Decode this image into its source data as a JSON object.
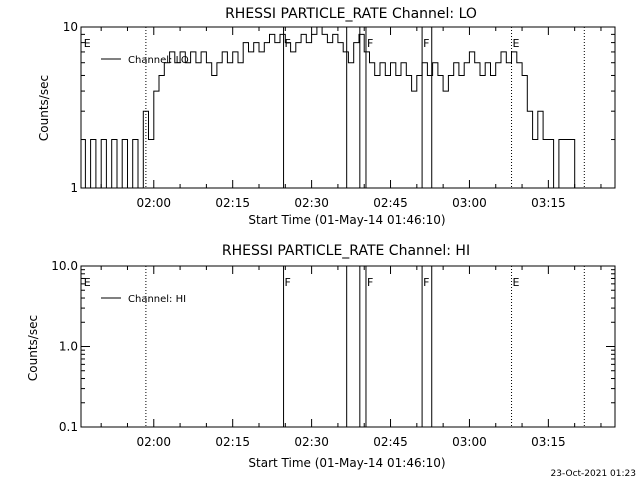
{
  "footer_timestamp": "23-Oct-2021 01:23",
  "chart_data": [
    {
      "type": "line",
      "title": "RHESSI PARTICLE_RATE Channel: LO",
      "xlabel": "Start Time (01-May-14 01:46:10)",
      "ylabel": "Counts/sec",
      "y_scale": "log",
      "ylim": [
        1,
        10
      ],
      "xlim": [
        "01:46:10",
        "03:27:40"
      ],
      "y_ticks": [
        1,
        10
      ],
      "y_tick_labels": [
        "1",
        "10"
      ],
      "x_ticks": [
        "02:00",
        "02:15",
        "02:30",
        "02:45",
        "03:00",
        "03:15"
      ],
      "legend": {
        "entries": [
          "Channel: LO"
        ],
        "position": "top-left"
      },
      "grid": false,
      "dotted_markers": [
        "01:58:30",
        "03:08:00",
        "03:21:50"
      ],
      "solid_markers": [
        "02:24:40",
        "02:36:40",
        "02:39:10",
        "02:40:20",
        "02:51:00",
        "02:52:50"
      ],
      "flags": [
        {
          "label": "E",
          "x": "01:46:30"
        },
        {
          "label": "F",
          "x": "02:24:40"
        },
        {
          "label": "F",
          "x": "02:40:20"
        },
        {
          "label": "F",
          "x": "02:51:00"
        },
        {
          "label": "E",
          "x": "03:08:00"
        }
      ],
      "series": [
        {
          "name": "Channel: LO",
          "x": [
            "01:46:10",
            "01:47:00",
            "01:48:00",
            "01:49:00",
            "01:50:00",
            "01:51:00",
            "01:52:00",
            "01:53:00",
            "01:54:00",
            "01:55:00",
            "01:56:00",
            "01:57:00",
            "01:58:00",
            "01:59:00",
            "02:00:00",
            "02:01:00",
            "02:02:00",
            "02:03:00",
            "02:04:00",
            "02:05:00",
            "02:06:00",
            "02:07:00",
            "02:08:00",
            "02:09:00",
            "02:10:00",
            "02:11:00",
            "02:12:00",
            "02:13:00",
            "02:14:00",
            "02:15:00",
            "02:16:00",
            "02:17:00",
            "02:18:00",
            "02:19:00",
            "02:20:00",
            "02:21:00",
            "02:22:00",
            "02:23:00",
            "02:24:00",
            "02:25:00",
            "02:26:00",
            "02:27:00",
            "02:28:00",
            "02:29:00",
            "02:30:00",
            "02:31:00",
            "02:32:00",
            "02:33:00",
            "02:34:00",
            "02:35:00",
            "02:36:00",
            "02:37:00",
            "02:38:00",
            "02:39:00",
            "02:40:00",
            "02:41:00",
            "02:42:00",
            "02:43:00",
            "02:44:00",
            "02:45:00",
            "02:46:00",
            "02:47:00",
            "02:48:00",
            "02:49:00",
            "02:50:00",
            "02:51:00",
            "02:52:00",
            "02:53:00",
            "02:54:00",
            "02:55:00",
            "02:56:00",
            "02:57:00",
            "02:58:00",
            "02:59:00",
            "03:00:00",
            "03:01:00",
            "03:02:00",
            "03:03:00",
            "03:04:00",
            "03:05:00",
            "03:06:00",
            "03:07:00",
            "03:08:00",
            "03:09:00",
            "03:10:00",
            "03:11:00",
            "03:12:00",
            "03:13:00",
            "03:14:00",
            "03:15:00",
            "03:16:00",
            "03:17:00",
            "03:18:00",
            "03:19:00",
            "03:20:00"
          ],
          "values": [
            2,
            1,
            2,
            1,
            2,
            1,
            2,
            1,
            2,
            1,
            2,
            1,
            3,
            2,
            4,
            5,
            6,
            7,
            6,
            7,
            6,
            7,
            6,
            7,
            6,
            5,
            6,
            7,
            6,
            7,
            6,
            8,
            7,
            8,
            7,
            8,
            9,
            8,
            9,
            8,
            7,
            8,
            9,
            8,
            9,
            10,
            9,
            8,
            9,
            8,
            7,
            6,
            8,
            9,
            7,
            6,
            5,
            6,
            5,
            6,
            5,
            6,
            5,
            4,
            5,
            6,
            5,
            6,
            5,
            4,
            5,
            6,
            5,
            6,
            7,
            6,
            5,
            6,
            5,
            6,
            7,
            6,
            7,
            6,
            5,
            3,
            2,
            3,
            2,
            2,
            1,
            2,
            2,
            2,
            1
          ]
        }
      ]
    },
    {
      "type": "line",
      "title": "RHESSI PARTICLE_RATE Channel: HI",
      "xlabel": "Start Time (01-May-14 01:46:10)",
      "ylabel": "Counts/sec",
      "y_scale": "log",
      "ylim": [
        0.1,
        10
      ],
      "xlim": [
        "01:46:10",
        "03:27:40"
      ],
      "y_ticks": [
        0.1,
        1,
        10
      ],
      "y_tick_labels": [
        "0.1",
        "1.0",
        "10.0"
      ],
      "x_ticks": [
        "02:00",
        "02:15",
        "02:30",
        "02:45",
        "03:00",
        "03:15"
      ],
      "legend": {
        "entries": [
          "Channel: HI"
        ],
        "position": "top-left"
      },
      "grid": false,
      "dotted_markers": [
        "01:58:30",
        "03:08:00",
        "03:21:50"
      ],
      "solid_markers": [
        "02:24:40",
        "02:36:40",
        "02:39:10",
        "02:40:20",
        "02:51:00",
        "02:52:50"
      ],
      "flags": [
        {
          "label": "E",
          "x": "01:46:30"
        },
        {
          "label": "F",
          "x": "02:24:40"
        },
        {
          "label": "F",
          "x": "02:40:20"
        },
        {
          "label": "F",
          "x": "02:51:00"
        },
        {
          "label": "E",
          "x": "03:08:00"
        }
      ],
      "series": [
        {
          "name": "Channel: HI",
          "x": [],
          "values": []
        }
      ]
    }
  ]
}
